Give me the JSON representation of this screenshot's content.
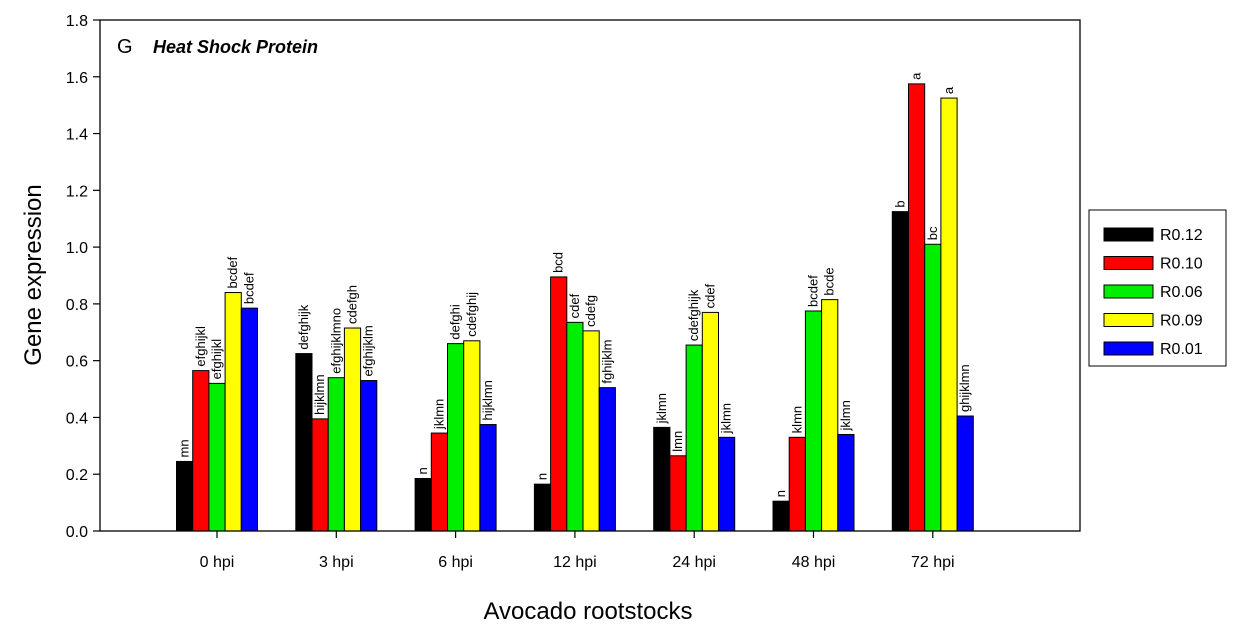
{
  "chart_data": {
    "type": "bar",
    "panel_letter": "G",
    "title": "Heat Shock Protein",
    "xlabel": "Avocado rootstocks",
    "ylabel": "Gene expression",
    "ylim": [
      0,
      1.8
    ],
    "yticks": [
      "0.0",
      "0.2",
      "0.4",
      "0.6",
      "0.8",
      "1.0",
      "1.2",
      "1.4",
      "1.6",
      "1.8"
    ],
    "grid": false,
    "legend_position": "right",
    "categories": [
      "0 hpi",
      "3 hpi",
      "6 hpi",
      "12 hpi",
      "24 hpi",
      "48 hpi",
      "72 hpi"
    ],
    "series": [
      {
        "name": "R0.12",
        "color": "#000000",
        "values": [
          0.245,
          0.625,
          0.185,
          0.165,
          0.365,
          0.105,
          1.125
        ],
        "labels": [
          "mn",
          "defghijk",
          "n",
          "n",
          "jklmn",
          "n",
          "b"
        ]
      },
      {
        "name": "R0.10",
        "color": "#ff0000",
        "values": [
          0.565,
          0.395,
          0.345,
          0.895,
          0.265,
          0.33,
          1.575
        ],
        "labels": [
          "efghijkl",
          "hijklmn",
          "jklmn",
          "bcd",
          "lmn",
          "klmn",
          "a"
        ]
      },
      {
        "name": "R0.06",
        "color": "#00ee00",
        "values": [
          0.52,
          0.54,
          0.66,
          0.735,
          0.655,
          0.775,
          1.01
        ],
        "labels": [
          "efghijkl",
          "efghijklmno",
          "defghi",
          "cdef",
          "cdefghijk",
          "bcdef",
          "bc"
        ]
      },
      {
        "name": "R0.09",
        "color": "#ffff00",
        "values": [
          0.84,
          0.715,
          0.67,
          0.705,
          0.77,
          0.815,
          1.525
        ],
        "labels": [
          "bcdef",
          "cdefgh",
          "cdefghij",
          "cdefg",
          "cdef",
          "bcde",
          "a"
        ]
      },
      {
        "name": "R0.01",
        "color": "#0000ff",
        "values": [
          0.785,
          0.53,
          0.375,
          0.505,
          0.33,
          0.34,
          0.405
        ],
        "labels": [
          "bcdef",
          "efghijklm",
          "hijklmn",
          "fghijklm",
          "jklmn",
          "jklmn",
          "ghijklmn"
        ]
      }
    ]
  }
}
